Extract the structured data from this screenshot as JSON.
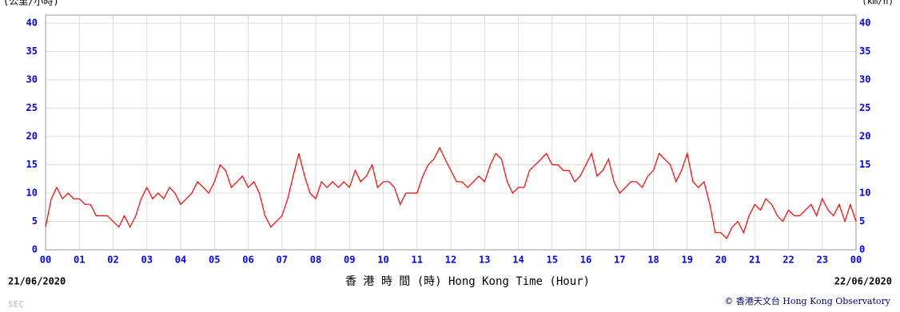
{
  "chart_data": {
    "type": "line",
    "y_unit_left": "(公里/小時)",
    "y_unit_right": "(km/h)",
    "xlabel": "香 港 時 間 (時)  Hong Kong Time (Hour)",
    "start_date": "21/06/2020",
    "end_date": "22/06/2020",
    "station": "SEC",
    "credit": "© 香港天文台 Hong Kong Observatory",
    "grid": true,
    "xlim": [
      0,
      24
    ],
    "xticks": [
      {
        "value": 0,
        "label": "00"
      },
      {
        "value": 1,
        "label": "01"
      },
      {
        "value": 2,
        "label": "02"
      },
      {
        "value": 3,
        "label": "03"
      },
      {
        "value": 4,
        "label": "04"
      },
      {
        "value": 5,
        "label": "05"
      },
      {
        "value": 6,
        "label": "06"
      },
      {
        "value": 7,
        "label": "07"
      },
      {
        "value": 8,
        "label": "08"
      },
      {
        "value": 9,
        "label": "09"
      },
      {
        "value": 10,
        "label": "10"
      },
      {
        "value": 11,
        "label": "11"
      },
      {
        "value": 12,
        "label": "12"
      },
      {
        "value": 13,
        "label": "13"
      },
      {
        "value": 14,
        "label": "14"
      },
      {
        "value": 15,
        "label": "15"
      },
      {
        "value": 16,
        "label": "16"
      },
      {
        "value": 17,
        "label": "17"
      },
      {
        "value": 18,
        "label": "18"
      },
      {
        "value": 19,
        "label": "19"
      },
      {
        "value": 20,
        "label": "20"
      },
      {
        "value": 21,
        "label": "21"
      },
      {
        "value": 22,
        "label": "22"
      },
      {
        "value": 23,
        "label": "23"
      },
      {
        "value": 24,
        "label": "00"
      }
    ],
    "ylim": [
      0,
      40
    ],
    "yticks": [
      0,
      5,
      10,
      15,
      20,
      25,
      30,
      35,
      40
    ],
    "y2lim": [
      0,
      40
    ],
    "y2ticks": [
      0,
      5,
      10,
      15,
      20,
      25,
      30,
      35,
      40
    ],
    "x": [
      0,
      0.17,
      0.33,
      0.5,
      0.67,
      0.83,
      1,
      1.17,
      1.33,
      1.5,
      1.67,
      1.83,
      2,
      2.17,
      2.33,
      2.5,
      2.67,
      2.83,
      3,
      3.17,
      3.33,
      3.5,
      3.67,
      3.83,
      4,
      4.17,
      4.33,
      4.5,
      4.67,
      4.83,
      5,
      5.17,
      5.33,
      5.5,
      5.67,
      5.83,
      6,
      6.17,
      6.33,
      6.5,
      6.67,
      6.83,
      7,
      7.17,
      7.33,
      7.5,
      7.67,
      7.83,
      8,
      8.17,
      8.33,
      8.5,
      8.67,
      8.83,
      9,
      9.17,
      9.33,
      9.5,
      9.67,
      9.83,
      10,
      10.17,
      10.33,
      10.5,
      10.67,
      10.83,
      11,
      11.17,
      11.33,
      11.5,
      11.67,
      11.83,
      12,
      12.17,
      12.33,
      12.5,
      12.67,
      12.83,
      13,
      13.17,
      13.33,
      13.5,
      13.67,
      13.83,
      14,
      14.17,
      14.33,
      14.5,
      14.67,
      14.83,
      15,
      15.17,
      15.33,
      15.5,
      15.67,
      15.83,
      16,
      16.17,
      16.33,
      16.5,
      16.67,
      16.83,
      17,
      17.17,
      17.33,
      17.5,
      17.67,
      17.83,
      18,
      18.17,
      18.33,
      18.5,
      18.67,
      18.83,
      19,
      19.17,
      19.33,
      19.5,
      19.67,
      19.83,
      20,
      20.17,
      20.33,
      20.5,
      20.67,
      20.83,
      21,
      21.17,
      21.33,
      21.5,
      21.67,
      21.83,
      22,
      22.17,
      22.33,
      22.5,
      22.67,
      22.83,
      23,
      23.17,
      23.33,
      23.5,
      23.67,
      23.83,
      24
    ],
    "series": [
      {
        "color": "#ff0000",
        "values": [
          4,
          9,
          11,
          9,
          10,
          9,
          9,
          8,
          8,
          6,
          6,
          6,
          5,
          4,
          6,
          4,
          6,
          9,
          11,
          9,
          10,
          9,
          11,
          10,
          8,
          9,
          10,
          12,
          11,
          10,
          12,
          15,
          14,
          11,
          12,
          13,
          11,
          12,
          10,
          6,
          4,
          5,
          6,
          9,
          13,
          17,
          13,
          10,
          9,
          12,
          11,
          12,
          11,
          12,
          11,
          14,
          12,
          13,
          15,
          11,
          12,
          12,
          11,
          8,
          10,
          10,
          10,
          13,
          15,
          16,
          18,
          16,
          14,
          12,
          12,
          11,
          12,
          13,
          12,
          15,
          17,
          16,
          12,
          10,
          11,
          11,
          14,
          15,
          16,
          17,
          15,
          15,
          14,
          14,
          12,
          13,
          15,
          17,
          13,
          14,
          16,
          12,
          10,
          11,
          12,
          12,
          11,
          13,
          14,
          17,
          16,
          15,
          12,
          14,
          17,
          12,
          11,
          12,
          8,
          3,
          3,
          2,
          4,
          5,
          3,
          6,
          8,
          7,
          9,
          8,
          6,
          5,
          7,
          6,
          6,
          7,
          8,
          6,
          9,
          7,
          6,
          8,
          5,
          8,
          5
        ]
      }
    ]
  }
}
